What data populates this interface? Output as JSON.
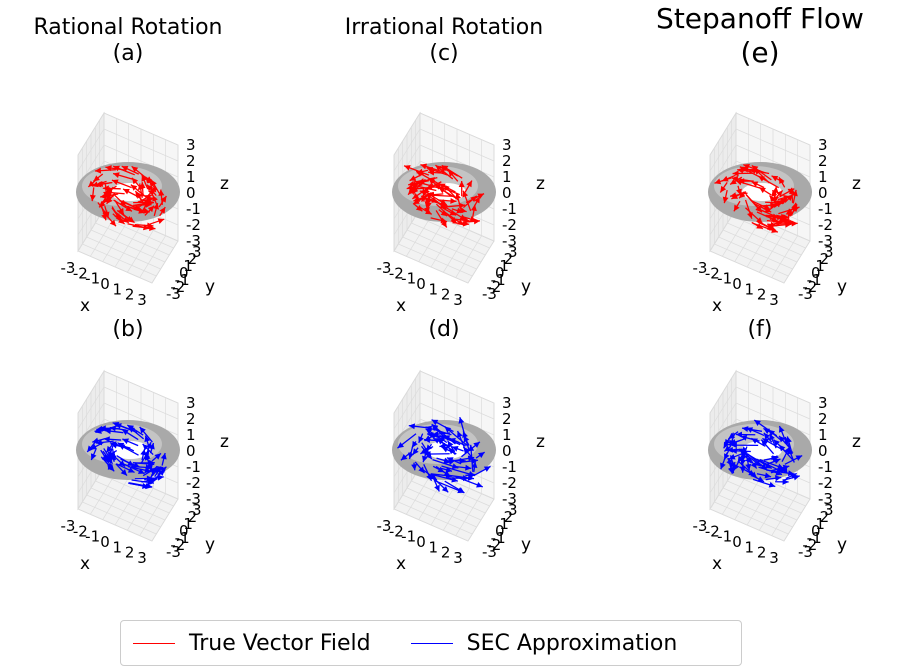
{
  "column_titles": [
    "Rational Rotation",
    "Irrational Rotation",
    "Stepanoff Flow"
  ],
  "legend": {
    "items": [
      {
        "label": "True Vector Field",
        "color": "#ff0000"
      },
      {
        "label": "SEC Approximation",
        "color": "#0000ff"
      }
    ]
  },
  "chart_data": [
    {
      "type": "3d-quiver",
      "panel_label": "(a)",
      "series": "True Vector Field",
      "color": "#ff0000",
      "field": "rational-rotation",
      "xlabel": "x",
      "ylabel": "y",
      "zlabel": "z",
      "xlim": [
        -3,
        3
      ],
      "ylim": [
        -3,
        3
      ],
      "zlim": [
        -3,
        3
      ],
      "xticks": [
        "-3",
        "-2",
        "-1",
        "0",
        "1",
        "2",
        "3"
      ],
      "yticks": [
        "-3",
        "-2",
        "-1",
        "0",
        "1",
        "2",
        "3"
      ],
      "zticks": [
        "3",
        "2",
        "1",
        "0",
        "-1",
        "-2",
        "-3"
      ],
      "surface": "torus",
      "grid": true
    },
    {
      "type": "3d-quiver",
      "panel_label": "(b)",
      "series": "SEC Approximation",
      "color": "#0000ff",
      "field": "rational-rotation",
      "xlabel": "x",
      "ylabel": "y",
      "zlabel": "z",
      "xlim": [
        -3,
        3
      ],
      "ylim": [
        -3,
        3
      ],
      "zlim": [
        -3,
        3
      ],
      "xticks": [
        "-3",
        "-2",
        "-1",
        "0",
        "1",
        "2",
        "3"
      ],
      "yticks": [
        "-3",
        "-2",
        "-1",
        "0",
        "1",
        "2",
        "3"
      ],
      "zticks": [
        "3",
        "2",
        "1",
        "0",
        "-1",
        "-2",
        "-3"
      ],
      "surface": "torus",
      "grid": true
    },
    {
      "type": "3d-quiver",
      "panel_label": "(c)",
      "series": "True Vector Field",
      "color": "#ff0000",
      "field": "irrational-rotation",
      "xlabel": "x",
      "ylabel": "y",
      "zlabel": "z",
      "xlim": [
        -3,
        3
      ],
      "ylim": [
        -3,
        3
      ],
      "zlim": [
        -3,
        3
      ],
      "xticks": [
        "-3",
        "-2",
        "-1",
        "0",
        "1",
        "2",
        "3"
      ],
      "yticks": [
        "-3",
        "-2",
        "-1",
        "0",
        "1",
        "2",
        "3"
      ],
      "zticks": [
        "3",
        "2",
        "1",
        "0",
        "-1",
        "-2",
        "-3"
      ],
      "surface": "torus",
      "grid": true
    },
    {
      "type": "3d-quiver",
      "panel_label": "(d)",
      "series": "SEC Approximation",
      "color": "#0000ff",
      "field": "irrational-rotation",
      "xlabel": "x",
      "ylabel": "y",
      "zlabel": "z",
      "xlim": [
        -3,
        3
      ],
      "ylim": [
        -3,
        3
      ],
      "zlim": [
        -3,
        3
      ],
      "xticks": [
        "-3",
        "-2",
        "-1",
        "0",
        "1",
        "2",
        "3"
      ],
      "yticks": [
        "-3",
        "-2",
        "-1",
        "0",
        "1",
        "2",
        "3"
      ],
      "zticks": [
        "3",
        "2",
        "1",
        "0",
        "-1",
        "-2",
        "-3"
      ],
      "surface": "torus",
      "grid": true
    },
    {
      "type": "3d-quiver",
      "panel_label": "(e)",
      "series": "True Vector Field",
      "color": "#ff0000",
      "field": "stepanoff-flow",
      "xlabel": "x",
      "ylabel": "y",
      "zlabel": "z",
      "xlim": [
        -3,
        3
      ],
      "ylim": [
        -3,
        3
      ],
      "zlim": [
        -3,
        3
      ],
      "xticks": [
        "-3",
        "-2",
        "-1",
        "0",
        "1",
        "2",
        "3"
      ],
      "yticks": [
        "-3",
        "-2",
        "-1",
        "0",
        "1",
        "2",
        "3"
      ],
      "zticks": [
        "3",
        "2",
        "1",
        "0",
        "-1",
        "-2",
        "-3"
      ],
      "surface": "torus",
      "grid": true
    },
    {
      "type": "3d-quiver",
      "panel_label": "(f)",
      "series": "SEC Approximation",
      "color": "#0000ff",
      "field": "stepanoff-flow",
      "xlabel": "x",
      "ylabel": "y",
      "zlabel": "z",
      "xlim": [
        -3,
        3
      ],
      "ylim": [
        -3,
        3
      ],
      "zlim": [
        -3,
        3
      ],
      "xticks": [
        "-3",
        "-2",
        "-1",
        "0",
        "1",
        "2",
        "3"
      ],
      "yticks": [
        "-3",
        "-2",
        "-1",
        "0",
        "1",
        "2",
        "3"
      ],
      "zticks": [
        "3",
        "2",
        "1",
        "0",
        "-1",
        "-2",
        "-3"
      ],
      "surface": "torus",
      "grid": true
    }
  ]
}
